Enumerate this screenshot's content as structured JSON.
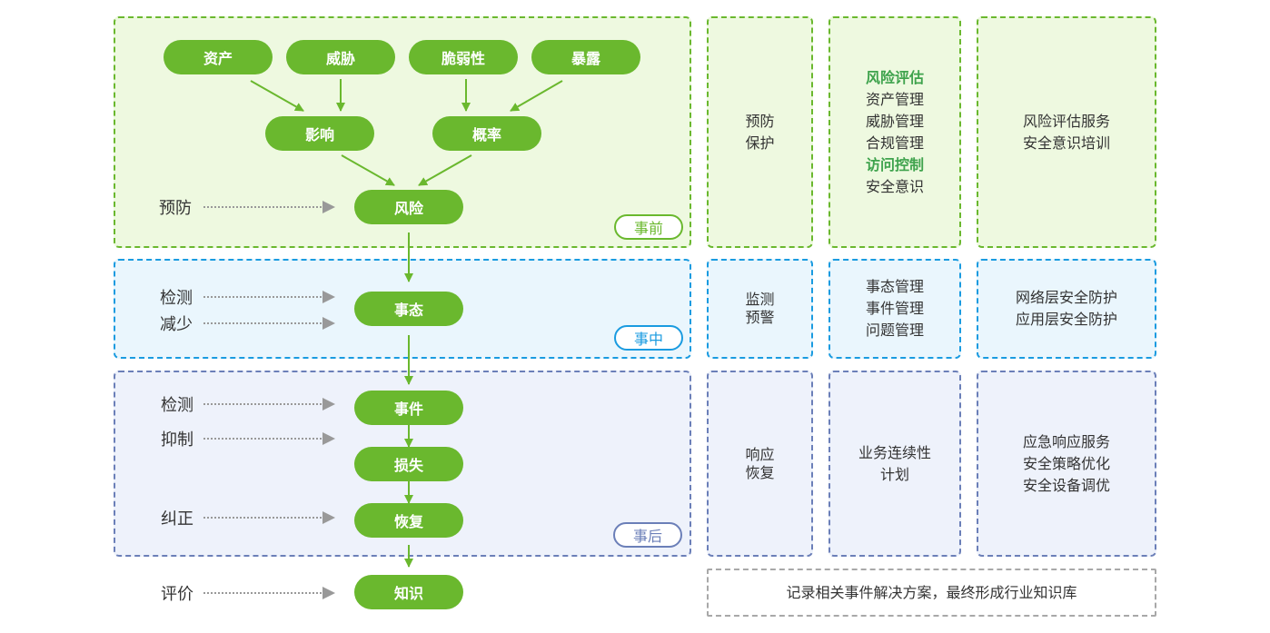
{
  "colors": {
    "green": "#6ab82e",
    "blue": "#1a9be0",
    "purple": "#6b7fb8",
    "highlight": "#3fa34d"
  },
  "nodes": {
    "asset": "资产",
    "threat": "威胁",
    "vulnerability": "脆弱性",
    "exposure": "暴露",
    "impact": "影响",
    "probability": "概率",
    "risk": "风险",
    "situation": "事态",
    "incident": "事件",
    "loss": "损失",
    "recovery": "恢复",
    "knowledge": "知识"
  },
  "actions": {
    "prevent": "预防",
    "detect1": "检测",
    "reduce": "减少",
    "detect2": "检测",
    "suppress": "抑制",
    "correct": "纠正",
    "evaluate": "评价"
  },
  "phases": {
    "before": "事前",
    "during": "事中",
    "after": "事后"
  },
  "col1": {
    "before": [
      "预防",
      "保护"
    ],
    "during": [
      "监测",
      "预警"
    ],
    "after": [
      "响应",
      "恢复"
    ]
  },
  "col2": {
    "before": [
      {
        "text": "风险评估",
        "highlight": true
      },
      {
        "text": "资产管理"
      },
      {
        "text": "威胁管理"
      },
      {
        "text": "合规管理"
      },
      {
        "text": "访问控制",
        "highlight": true
      },
      {
        "text": "安全意识"
      }
    ],
    "during": [
      "事态管理",
      "事件管理",
      "问题管理"
    ],
    "after": [
      "业务连续性",
      "计划"
    ]
  },
  "col3": {
    "before": [
      "风险评估服务",
      "安全意识培训"
    ],
    "during": [
      "网络层安全防护",
      "应用层安全防护"
    ],
    "after": [
      "应急响应服务",
      "安全策略优化",
      "安全设备调优"
    ]
  },
  "footer": "记录相关事件解决方案，最终形成行业知识库"
}
